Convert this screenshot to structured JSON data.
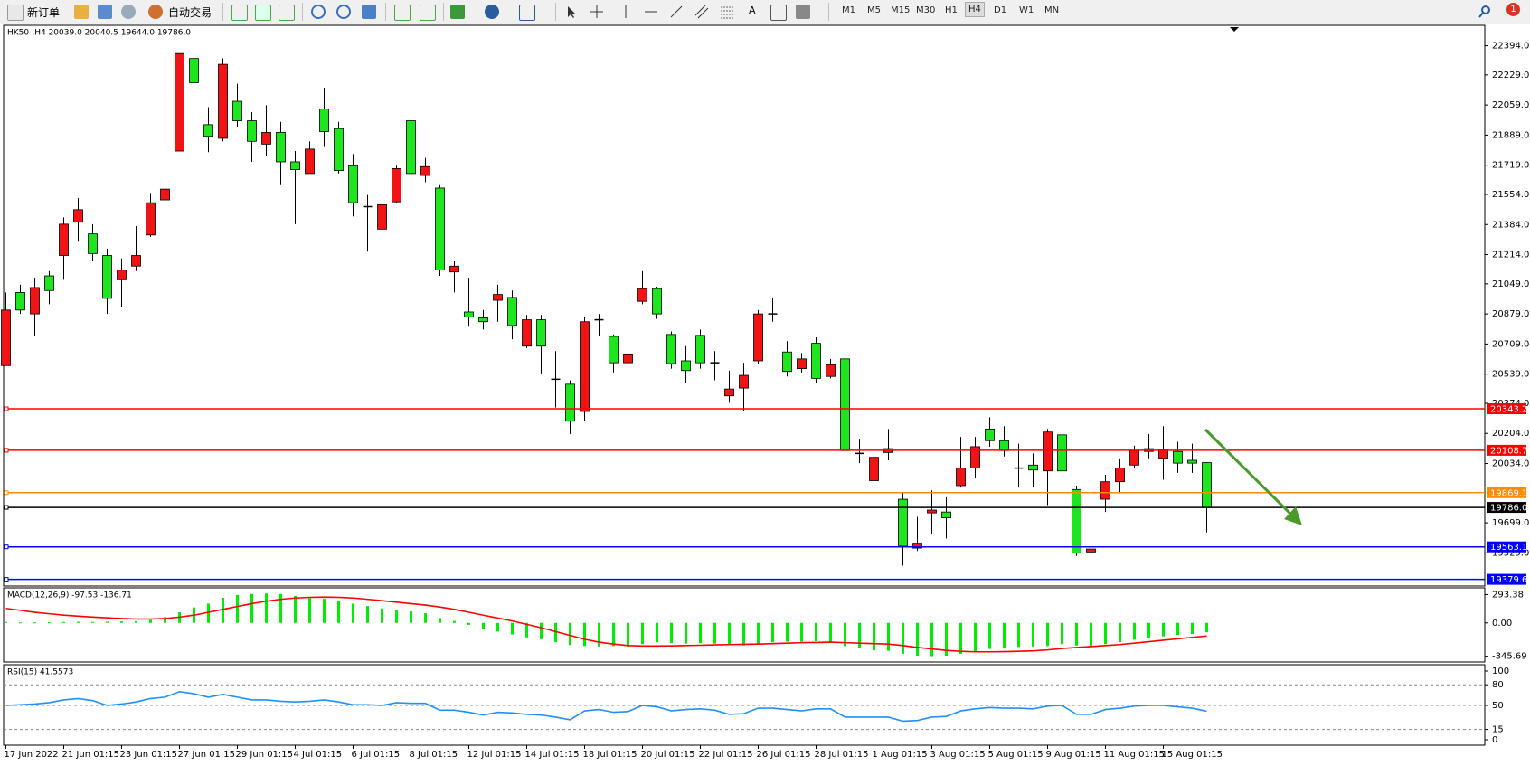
{
  "toolbar": {
    "new_order": "新订单",
    "auto_trading": "自动交易",
    "timeframes": [
      "M1",
      "M5",
      "M15",
      "M30",
      "H1",
      "H4",
      "D1",
      "W1",
      "MN"
    ],
    "notifications": "1"
  },
  "chart_data": [
    {
      "type": "candlestick",
      "title": "HK50-,H4  20039.0 20040.5 19644.0 19786.0",
      "categories": [
        "17 Jun 2022",
        null,
        null,
        null,
        "21 Jun 01:15",
        null,
        null,
        null,
        "23 Jun 01:15",
        null,
        null,
        null,
        "27 Jun 01:15",
        null,
        null,
        null,
        "29 Jun 01:15",
        null,
        null,
        null,
        "4 Jul 01:15",
        null,
        null,
        null,
        "6 Jul 01:15",
        null,
        null,
        null,
        "8 Jul 01:15",
        null,
        null,
        null,
        "12 Jul 01:15",
        null,
        null,
        null,
        "14 Jul 01:15",
        null,
        null,
        null,
        "18 Jul 01:15",
        null,
        null,
        null,
        "20 Jul 01:15",
        null,
        null,
        null,
        "22 Jul 01:15",
        null,
        null,
        null,
        "26 Jul 01:15",
        null,
        null,
        null,
        "28 Jul 01:15",
        null,
        null,
        null,
        "1 Aug 01:15",
        null,
        null,
        null,
        "3 Aug 01:15",
        null,
        null,
        null,
        "5 Aug 01:15",
        null,
        null,
        null,
        "9 Aug 01:15",
        null,
        null,
        null,
        "11 Aug 01:15",
        null,
        null,
        null,
        "15 Aug 01:15",
        null,
        null,
        null
      ],
      "ohlc": [
        [
          20587,
          21000,
          20587,
          20901
        ],
        [
          21000,
          21044,
          20879,
          20901
        ],
        [
          20879,
          21083,
          20752,
          21028
        ],
        [
          21094,
          21121,
          20934,
          21011
        ],
        [
          21209,
          21424,
          21072,
          21386
        ],
        [
          21397,
          21534,
          21287,
          21468
        ],
        [
          21331,
          21386,
          21176,
          21220
        ],
        [
          21209,
          21248,
          20879,
          20967
        ],
        [
          21072,
          21193,
          20917,
          21127
        ],
        [
          21149,
          21375,
          21121,
          21209
        ],
        [
          21325,
          21562,
          21314,
          21507
        ],
        [
          21523,
          21683,
          21518,
          21584
        ],
        [
          21799,
          22350,
          21799,
          22350
        ],
        [
          22322,
          22333,
          22058,
          22185
        ],
        [
          21948,
          22047,
          21793,
          21882
        ],
        [
          21871,
          22322,
          21854,
          22289
        ],
        [
          22080,
          22179,
          21937,
          21970
        ],
        [
          21970,
          22019,
          21738,
          21854
        ],
        [
          21838,
          22058,
          21771,
          21904
        ],
        [
          21904,
          21964,
          21606,
          21738
        ],
        [
          21738,
          21799,
          21386,
          21694
        ],
        [
          21672,
          21854,
          21672,
          21810
        ],
        [
          22036,
          22157,
          21827,
          21909
        ],
        [
          21926,
          21964,
          21672,
          21689
        ],
        [
          21716,
          21782,
          21430,
          21507
        ],
        [
          21485,
          21551,
          21231,
          21490
        ],
        [
          21358,
          21551,
          21209,
          21496
        ],
        [
          21512,
          21716,
          21507,
          21700
        ],
        [
          21970,
          22047,
          21661,
          21672
        ],
        [
          21661,
          21760,
          21623,
          21711
        ],
        [
          21590,
          21606,
          21094,
          21127
        ],
        [
          21116,
          21176,
          21000,
          21149
        ],
        [
          20890,
          21083,
          20807,
          20862
        ],
        [
          20857,
          20901,
          20791,
          20835
        ],
        [
          20956,
          21044,
          20835,
          20989
        ],
        [
          20972,
          21011,
          20736,
          20813
        ],
        [
          20697,
          20873,
          20686,
          20846
        ],
        [
          20846,
          20873,
          20543,
          20697
        ],
        [
          20510,
          20669,
          20350,
          20515
        ],
        [
          20482,
          20504,
          20201,
          20273
        ],
        [
          20328,
          20862,
          20273,
          20835
        ],
        [
          20846,
          20879,
          20752,
          20846
        ],
        [
          20752,
          20763,
          20548,
          20603
        ],
        [
          20603,
          20725,
          20537,
          20653
        ],
        [
          20950,
          21121,
          20934,
          21022
        ],
        [
          21022,
          21033,
          20851,
          20879
        ],
        [
          20763,
          20780,
          20570,
          20598
        ],
        [
          20614,
          20697,
          20488,
          20559
        ],
        [
          20758,
          20791,
          20570,
          20603
        ],
        [
          20603,
          20669,
          20504,
          20603
        ],
        [
          20416,
          20559,
          20377,
          20455
        ],
        [
          20460,
          20603,
          20333,
          20532
        ],
        [
          20614,
          20901,
          20598,
          20879
        ],
        [
          20879,
          20967,
          20835,
          20879
        ],
        [
          20664,
          20725,
          20526,
          20554
        ],
        [
          20570,
          20658,
          20548,
          20625
        ],
        [
          20713,
          20747,
          20488,
          20515
        ],
        [
          20526,
          20625,
          20515,
          20592
        ],
        [
          20625,
          20642,
          20074,
          20107
        ],
        [
          20091,
          20174,
          20036,
          20091
        ],
        [
          19937,
          20091,
          19854,
          20069
        ],
        [
          20096,
          20229,
          20052,
          20118
        ],
        [
          19832,
          19870,
          19457,
          19567
        ],
        [
          19556,
          19733,
          19540,
          19584
        ],
        [
          19755,
          19882,
          19633,
          19771
        ],
        [
          19760,
          19843,
          19611,
          19727
        ],
        [
          19909,
          20184,
          19898,
          20008
        ],
        [
          20008,
          20184,
          19953,
          20129
        ],
        [
          20229,
          20295,
          20129,
          20163
        ],
        [
          20163,
          20245,
          20074,
          20107
        ],
        [
          20008,
          20146,
          19898,
          20008
        ],
        [
          20025,
          20091,
          19898,
          19997
        ],
        [
          19992,
          20229,
          19799,
          20212
        ],
        [
          20196,
          20212,
          19953,
          19992
        ],
        [
          19887,
          19909,
          19512,
          19529
        ],
        [
          19534,
          19567,
          19413,
          19551
        ],
        [
          19832,
          19970,
          19760,
          19931
        ],
        [
          19931,
          20063,
          19865,
          20008
        ],
        [
          20025,
          20135,
          20008,
          20107
        ],
        [
          20102,
          20201,
          20063,
          20118
        ],
        [
          20063,
          20245,
          19942,
          20113
        ],
        [
          20102,
          20157,
          19981,
          20036
        ],
        [
          20052,
          20146,
          19981,
          20036
        ],
        [
          20039,
          20040.5,
          19644,
          19786
        ]
      ],
      "up_color": "#f01414",
      "down_color": "#1ee61e",
      "doji_color": "#000000",
      "ylim": [
        19347,
        22499
      ],
      "yticks": [
        {
          "value": 22394,
          "label": "22394.0"
        },
        {
          "value": 22229,
          "label": "22229.0"
        },
        {
          "value": 22059,
          "label": "22059.0"
        },
        {
          "value": 21889,
          "label": "21889.0"
        },
        {
          "value": 21719,
          "label": "21719.0"
        },
        {
          "value": 21554,
          "label": "21554.0"
        },
        {
          "value": 21384,
          "label": "21384.0"
        },
        {
          "value": 21214,
          "label": "21214.0"
        },
        {
          "value": 21049,
          "label": "21049.0"
        },
        {
          "value": 20879,
          "label": "20879.0"
        },
        {
          "value": 20709,
          "label": "20709.0"
        },
        {
          "value": 20539,
          "label": "20539.0"
        },
        {
          "value": 20374,
          "label": "20374.0"
        },
        {
          "value": 20204,
          "label": "20204.0"
        },
        {
          "value": 20034,
          "label": "20034.0"
        },
        {
          "value": 19699,
          "label": "19699.0"
        },
        {
          "value": 19529,
          "label": "19529.0"
        }
      ],
      "levels": [
        {
          "value": 20343.2,
          "color": "#ff0000"
        },
        {
          "value": 20108.7,
          "color": "#ff0000"
        },
        {
          "value": 19869.1,
          "color": "#ff8c00"
        },
        {
          "value": 19786,
          "label": "19786.0",
          "color": "#000000"
        },
        {
          "value": 19563.1,
          "color": "#0000ff"
        },
        {
          "value": 19379.6,
          "color": "#0000ff"
        }
      ]
    },
    {
      "type": "macd",
      "title": "MACD(12,26,9) -97.53 -136.71",
      "series": [
        {
          "style": "bar",
          "color": "#00ee00",
          "values": [
            10,
            5,
            5,
            8,
            10,
            12,
            10,
            12,
            15,
            18,
            30,
            60,
            110,
            160,
            200,
            260,
            290,
            300,
            305,
            300,
            280,
            260,
            250,
            230,
            200,
            175,
            150,
            130,
            120,
            100,
            50,
            20,
            -20,
            -60,
            -90,
            -120,
            -150,
            -170,
            -200,
            -230,
            -240,
            -245,
            -240,
            -245,
            -220,
            -200,
            -210,
            -215,
            -210,
            -215,
            -230,
            -235,
            -215,
            -200,
            -195,
            -195,
            -190,
            -195,
            -240,
            -265,
            -285,
            -290,
            -320,
            -340,
            -345,
            -340,
            -320,
            -300,
            -270,
            -255,
            -250,
            -245,
            -240,
            -220,
            -235,
            -240,
            -220,
            -200,
            -175,
            -155,
            -140,
            -125,
            -115,
            -97.53
          ]
        },
        {
          "style": "line",
          "color": "#ff0000",
          "values": [
            150,
            130,
            110,
            95,
            80,
            70,
            60,
            52,
            45,
            40,
            40,
            45,
            60,
            80,
            110,
            140,
            170,
            200,
            225,
            245,
            258,
            265,
            268,
            265,
            258,
            245,
            230,
            215,
            200,
            185,
            165,
            140,
            110,
            80,
            50,
            20,
            -15,
            -50,
            -90,
            -130,
            -170,
            -200,
            -220,
            -235,
            -240,
            -240,
            -238,
            -235,
            -232,
            -228,
            -225,
            -222,
            -220,
            -215,
            -210,
            -205,
            -203,
            -200,
            -205,
            -210,
            -215,
            -220,
            -235,
            -255,
            -270,
            -285,
            -295,
            -300,
            -300,
            -298,
            -295,
            -290,
            -280,
            -265,
            -255,
            -245,
            -235,
            -225,
            -210,
            -195,
            -180,
            -165,
            -150,
            -136.71
          ]
        }
      ],
      "ylim": [
        -396,
        354
      ],
      "yticks": [
        293.38,
        {
          "value": 0,
          "label": "0.00"
        },
        -345.69
      ]
    },
    {
      "type": "line",
      "title": "RSI(15) 41.5573",
      "series": [
        {
          "style": "line",
          "color": "#1e90ff",
          "values": [
            50,
            51,
            52,
            54,
            58,
            60,
            57,
            50,
            52,
            55,
            60,
            62,
            70,
            67,
            62,
            66,
            62,
            58,
            58,
            56,
            55,
            56,
            58,
            55,
            51,
            51,
            50,
            54,
            53,
            53,
            43,
            43,
            40,
            36,
            40,
            39,
            37,
            36,
            33,
            29,
            42,
            44,
            40,
            41,
            50,
            48,
            42,
            44,
            45,
            43,
            37,
            38,
            46,
            46,
            44,
            42,
            45,
            45,
            33,
            33,
            33,
            33,
            27,
            28,
            33,
            34,
            42,
            45,
            47,
            46,
            46,
            45,
            49,
            50,
            37,
            37,
            44,
            46,
            49,
            50,
            50,
            48,
            46,
            41.5573
          ]
        }
      ],
      "ylim": [
        0,
        100
      ],
      "yticks": [
        100,
        80,
        50,
        15,
        0
      ],
      "grid": "dashed"
    }
  ]
}
